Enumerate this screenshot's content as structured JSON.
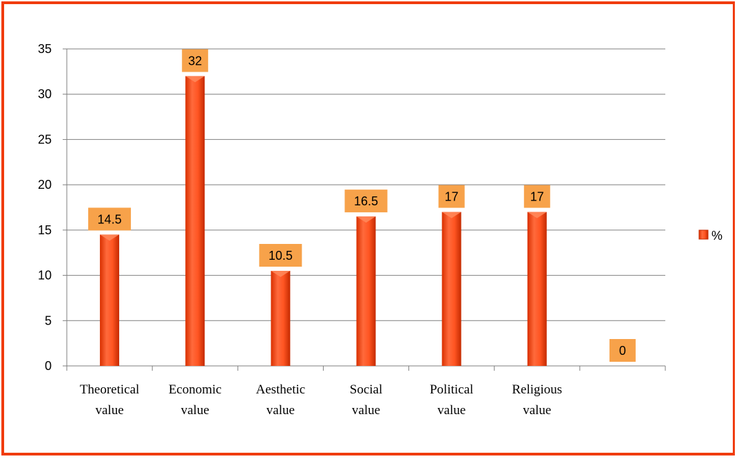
{
  "colors": {
    "frame": "#f03c0a",
    "bar_light": "#ff6a3c",
    "bar_dark": "#d93000",
    "label_fill": "#f7a24a",
    "gridline": "#7f7f7f"
  },
  "chart_data": {
    "type": "bar",
    "categories": [
      [
        "Theoretical",
        "value"
      ],
      [
        "Economic",
        "value"
      ],
      [
        "Aesthetic",
        "value"
      ],
      [
        "Social",
        "value"
      ],
      [
        "Political",
        "value"
      ],
      [
        "Religious",
        "value"
      ],
      [
        "",
        ""
      ]
    ],
    "series": [
      {
        "name": "%",
        "values": [
          14.5,
          32,
          10.5,
          16.5,
          17,
          17,
          0
        ]
      }
    ],
    "data_labels": [
      "14.5",
      "32",
      "10.5",
      "16.5",
      "17",
      "17",
      "0"
    ],
    "ylim": [
      0,
      35
    ],
    "yticks": [
      "0",
      "5",
      "10",
      "15",
      "20",
      "25",
      "30",
      "35"
    ],
    "grid": true,
    "legend_position": "right"
  }
}
